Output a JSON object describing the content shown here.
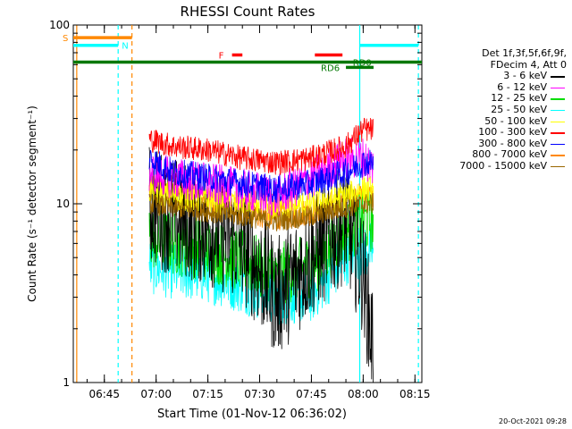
{
  "chart_data": {
    "type": "line",
    "title": "RHESSI Count Rates",
    "xlabel": "Start Time (01-Nov-12 06:36:02)",
    "ylabel": "Count Rate (s⁻¹ detector segment⁻¹)",
    "yscale": "log",
    "ylim": [
      1,
      100
    ],
    "xlim": [
      "06:36",
      "08:17"
    ],
    "x_ticks": [
      "06:45",
      "07:00",
      "07:15",
      "07:30",
      "07:45",
      "08:00",
      "08:15"
    ],
    "y_ticks": [
      "1",
      "10",
      "100"
    ],
    "grid": false,
    "legend_position": "right",
    "legend_header": [
      "Det 1f,3f,5f,6f,9f,",
      "FDecim 4, Att 0"
    ],
    "timestamp": "20-Oct-2021 09:28",
    "data_window": {
      "start": "06:58",
      "end": "08:03"
    },
    "series": [
      {
        "name": "3 - 6 keV",
        "color": "#000000",
        "x": [
          "06:58",
          "07:05",
          "07:15",
          "07:25",
          "07:35",
          "07:45",
          "07:55",
          "08:00",
          "08:03"
        ],
        "values": [
          10,
          8.5,
          7.5,
          6.0,
          3.0,
          5.0,
          8.0,
          4.0,
          1.5
        ]
      },
      {
        "name": "6 - 12 keV",
        "color": "#ff00ff",
        "x": [
          "06:58",
          "07:05",
          "07:15",
          "07:25",
          "07:35",
          "07:45",
          "07:55",
          "08:00",
          "08:03"
        ],
        "values": [
          15,
          14,
          13,
          12,
          11,
          14,
          18,
          18,
          16
        ]
      },
      {
        "name": "12 - 25 keV",
        "color": "#00dd00",
        "x": [
          "06:58",
          "07:05",
          "07:15",
          "07:25",
          "07:35",
          "07:45",
          "07:55",
          "08:00",
          "08:03"
        ],
        "values": [
          6.5,
          6.0,
          5.5,
          4.8,
          4.0,
          4.5,
          7.0,
          8.0,
          8.0
        ]
      },
      {
        "name": "25 - 50 keV",
        "color": "#00ffff",
        "x": [
          "06:58",
          "07:05",
          "07:15",
          "07:25",
          "07:35",
          "07:45",
          "07:55",
          "08:00",
          "08:03"
        ],
        "values": [
          4.5,
          4.2,
          4.0,
          3.5,
          3.0,
          3.1,
          5.0,
          5.5,
          5.5
        ]
      },
      {
        "name": "50 - 100 keV",
        "color": "#ffff00",
        "x": [
          "06:58",
          "07:05",
          "07:15",
          "07:25",
          "07:35",
          "07:45",
          "07:55",
          "08:00",
          "08:03"
        ],
        "values": [
          12,
          11,
          10.5,
          10,
          9.5,
          10,
          11,
          12,
          12
        ]
      },
      {
        "name": "100 - 300 keV",
        "color": "#ff0000",
        "x": [
          "06:58",
          "07:05",
          "07:15",
          "07:25",
          "07:35",
          "07:45",
          "07:55",
          "08:00",
          "08:03"
        ],
        "values": [
          23,
          21,
          20,
          18,
          17,
          18,
          21,
          26,
          26
        ]
      },
      {
        "name": "300 - 800 keV",
        "color": "#0000ff",
        "x": [
          "06:58",
          "07:05",
          "07:15",
          "07:25",
          "07:35",
          "07:45",
          "07:55",
          "08:00",
          "08:03"
        ],
        "values": [
          18,
          15,
          14,
          13,
          12,
          13,
          15,
          17,
          17
        ]
      },
      {
        "name": "800 - 7000 keV",
        "color": "#ff8800",
        "x": [
          "06:58",
          "07:05",
          "07:15",
          "07:25",
          "07:35",
          "07:45",
          "07:55",
          "08:00",
          "08:03"
        ],
        "values": [
          12,
          11,
          10,
          9.0,
          8.5,
          9.0,
          10.5,
          11,
          11
        ]
      },
      {
        "name": "7000 - 15000 keV",
        "color": "#996600",
        "x": [
          "06:58",
          "07:05",
          "07:15",
          "07:25",
          "07:35",
          "07:45",
          "07:55",
          "08:00",
          "08:03"
        ],
        "values": [
          10,
          9.5,
          9,
          8.5,
          8,
          8.5,
          9.5,
          10,
          10
        ]
      }
    ],
    "annotations": {
      "flag_bars": [
        {
          "label": "S",
          "color": "#ff8800",
          "start": "06:36",
          "end": "06:53",
          "y": 85
        },
        {
          "label": "N",
          "color": "#00ffff",
          "start": "06:36",
          "end": "06:49",
          "y": 77
        },
        {
          "label": "",
          "color": "#00ffff",
          "start": "07:59",
          "end": "08:16",
          "y": 77
        },
        {
          "label": "F",
          "color": "#ff0000",
          "start": "07:22",
          "end": "07:25",
          "y": 68
        },
        {
          "label": "",
          "color": "#ff0000",
          "start": "07:46",
          "end": "07:54",
          "y": 68
        },
        {
          "label": "",
          "color": "#007700",
          "start": "06:36",
          "end": "08:17",
          "y": 62
        },
        {
          "label": "RD0",
          "color": "#007700",
          "start": "",
          "end": "",
          "y": 62
        },
        {
          "label": "RD6",
          "color": "#007700",
          "start": "07:55",
          "end": "08:03",
          "y": 58
        }
      ],
      "vlines": [
        {
          "x": "06:37",
          "color": "#ff8800",
          "style": "solid"
        },
        {
          "x": "06:49",
          "color": "#00ffff",
          "style": "dashed"
        },
        {
          "x": "06:53",
          "color": "#ff8800",
          "style": "dashed"
        },
        {
          "x": "07:59",
          "color": "#00ffff",
          "style": "solid"
        },
        {
          "x": "08:16",
          "color": "#00ffff",
          "style": "dashed"
        }
      ]
    }
  }
}
